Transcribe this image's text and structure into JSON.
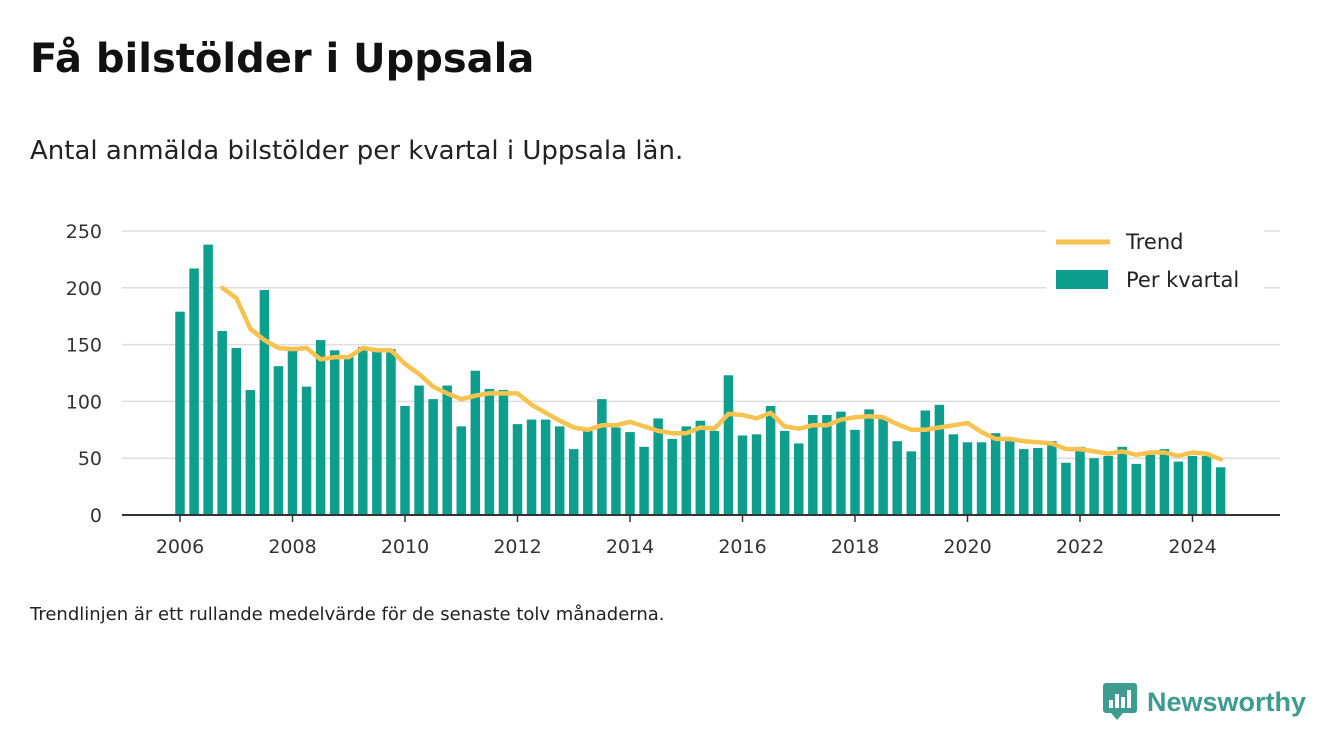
{
  "header": {
    "title": "Få bilstölder i Uppsala",
    "subtitle": "Antal anmälda bilstölder per kvartal i Uppsala län."
  },
  "footnote": "Trendlinjen är ett rullande medelvärde för de senaste tolv månaderna.",
  "brand": {
    "name": "Newsworthy",
    "icon": "newsworthy-logo-icon"
  },
  "colors": {
    "bar": "#0e9e8e",
    "trend": "#f7c24d",
    "grid": "#dddddd",
    "axis": "#333333"
  },
  "chart_data": {
    "type": "bar",
    "title": "Få bilstölder i Uppsala",
    "subtitle": "Antal anmälda bilstölder per kvartal i Uppsala län.",
    "xlabel": "",
    "ylabel": "",
    "ylim": [
      0,
      250
    ],
    "yticks": [
      "0",
      "50",
      "100",
      "150",
      "200",
      "250"
    ],
    "xticks": [
      "2006",
      "2008",
      "2010",
      "2012",
      "2014",
      "2016",
      "2018",
      "2020",
      "2022",
      "2024"
    ],
    "grid": true,
    "legend_position": "top-right",
    "start_year": 2006,
    "quarters": [
      "2006 Q1",
      "2006 Q2",
      "2006 Q3",
      "2006 Q4",
      "2007 Q1",
      "2007 Q2",
      "2007 Q3",
      "2007 Q4",
      "2008 Q1",
      "2008 Q2",
      "2008 Q3",
      "2008 Q4",
      "2009 Q1",
      "2009 Q2",
      "2009 Q3",
      "2009 Q4",
      "2010 Q1",
      "2010 Q2",
      "2010 Q3",
      "2010 Q4",
      "2011 Q1",
      "2011 Q2",
      "2011 Q3",
      "2011 Q4",
      "2012 Q1",
      "2012 Q2",
      "2012 Q3",
      "2012 Q4",
      "2013 Q1",
      "2013 Q2",
      "2013 Q3",
      "2013 Q4",
      "2014 Q1",
      "2014 Q2",
      "2014 Q3",
      "2014 Q4",
      "2015 Q1",
      "2015 Q2",
      "2015 Q3",
      "2015 Q4",
      "2016 Q1",
      "2016 Q2",
      "2016 Q3",
      "2016 Q4",
      "2017 Q1",
      "2017 Q2",
      "2017 Q3",
      "2017 Q4",
      "2018 Q1",
      "2018 Q2",
      "2018 Q3",
      "2018 Q4",
      "2019 Q1",
      "2019 Q2",
      "2019 Q3",
      "2019 Q4",
      "2020 Q1",
      "2020 Q2",
      "2020 Q3",
      "2020 Q4",
      "2021 Q1",
      "2021 Q2",
      "2021 Q3",
      "2021 Q4",
      "2022 Q1",
      "2022 Q2",
      "2022 Q3",
      "2022 Q4",
      "2023 Q1",
      "2023 Q2",
      "2023 Q3",
      "2023 Q4",
      "2024 Q1",
      "2024 Q2",
      "2024 Q3"
    ],
    "series": [
      {
        "name": "Per kvartal",
        "type": "bar",
        "values": [
          179,
          217,
          238,
          162,
          147,
          110,
          198,
          131,
          145,
          113,
          154,
          145,
          140,
          148,
          146,
          146,
          96,
          114,
          102,
          114,
          78,
          127,
          111,
          110,
          80,
          84,
          84,
          78,
          58,
          74,
          102,
          77,
          73,
          60,
          85,
          67,
          78,
          83,
          74,
          123,
          70,
          71,
          96,
          74,
          63,
          88,
          88,
          91,
          75,
          93,
          86,
          65,
          56,
          92,
          97,
          71,
          64,
          64,
          72,
          65,
          58,
          59,
          65,
          46,
          60,
          50,
          52,
          60,
          45,
          53,
          58,
          47,
          52,
          52,
          42
        ]
      },
      {
        "name": "Trend",
        "type": "line",
        "values": [
          null,
          null,
          null,
          200,
          191,
          164,
          154,
          147,
          146,
          147,
          137,
          139,
          139,
          147,
          145,
          145,
          133,
          124,
          113,
          107,
          102,
          105,
          107,
          107,
          107,
          97,
          90,
          83,
          77,
          75,
          79,
          79,
          82,
          78,
          74,
          72,
          72,
          77,
          76,
          89,
          88,
          85,
          90,
          78,
          76,
          79,
          79,
          84,
          86,
          87,
          86,
          80,
          75,
          75,
          77,
          79,
          81,
          73,
          67,
          67,
          65,
          64,
          63,
          58,
          58,
          56,
          54,
          56,
          53,
          55,
          55,
          52,
          55,
          54,
          49
        ]
      }
    ]
  }
}
